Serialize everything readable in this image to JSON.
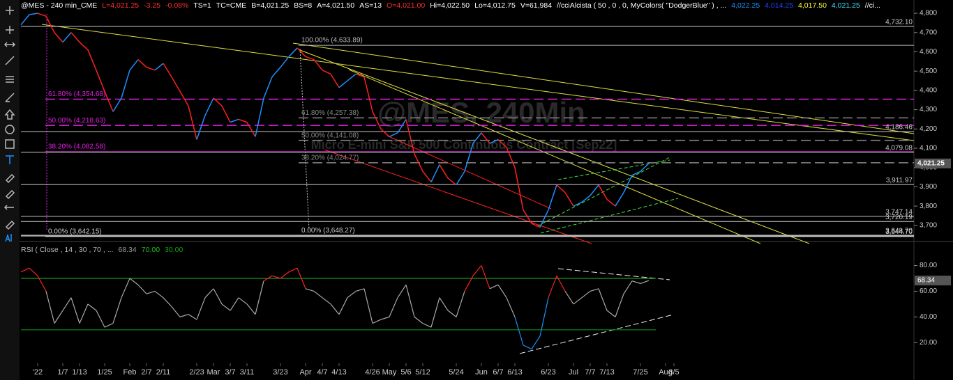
{
  "header": {
    "items": [
      {
        "text": "@MES - 240 min_CME",
        "color": "#ffffff"
      },
      {
        "text": "L=4,021.25",
        "color": "#ff3030"
      },
      {
        "text": "-3.25",
        "color": "#ff3030"
      },
      {
        "text": "-0.08%",
        "color": "#ff3030"
      },
      {
        "text": "TS=1",
        "color": "#ffffff"
      },
      {
        "text": "TC=CME",
        "color": "#ffffff"
      },
      {
        "text": "B=4,021.25",
        "color": "#ffffff"
      },
      {
        "text": "BS=8",
        "color": "#ffffff"
      },
      {
        "text": "A=4,021.50",
        "color": "#ffffff"
      },
      {
        "text": "AS=13",
        "color": "#ffffff"
      },
      {
        "text": "O=4,021.00",
        "color": "#ff3030"
      },
      {
        "text": "Hi=4,022.50",
        "color": "#ffffff"
      },
      {
        "text": "Lo=4,012.75",
        "color": "#ffffff"
      },
      {
        "text": "V=61,984",
        "color": "#ffffff"
      },
      {
        "text": "//cciAlcista ( 50 , 0 , 0, MyColors( \"DodgerBlue\" ) , ...",
        "color": "#ffffff"
      },
      {
        "text": "4,022.25",
        "color": "#1e90ff"
      },
      {
        "text": "4,014.25",
        "color": "#2040ff"
      },
      {
        "text": "4,017.50",
        "color": "#ffff40"
      },
      {
        "text": "4,021.25",
        "color": "#40e0ff"
      },
      {
        "text": "//ci...",
        "color": "#ffffff"
      }
    ]
  },
  "chart_data": [
    {
      "type": "line",
      "title": "@MES, 240Min",
      "subtitle": "Micro E-mini S&P 500 Continuous Contract [Sep22]",
      "categories": [
        null,
        null,
        "'22",
        null,
        null,
        "1/7",
        null,
        "1/13",
        null,
        null,
        "1/25",
        null,
        null,
        "Feb",
        null,
        "2/7",
        null,
        "2/11",
        null,
        null,
        null,
        "2/23",
        null,
        "Mar",
        null,
        "3/7",
        null,
        "3/11",
        null,
        null,
        null,
        "3/23",
        null,
        null,
        "Apr",
        null,
        "4/7",
        null,
        "4/13",
        null,
        null,
        null,
        "4/26",
        null,
        "May",
        null,
        "5/6",
        null,
        "5/12",
        null,
        null,
        null,
        "5/24",
        null,
        null,
        "Jun",
        null,
        "6/7",
        null,
        "6/13",
        null,
        null,
        null,
        "6/23",
        null,
        null,
        "Jul",
        null,
        "7/7",
        null,
        "7/13",
        null,
        null,
        null,
        "7/25",
        null,
        null,
        "Aug",
        "8/5"
      ],
      "series": [
        {
          "name": "@MES - 240 min_CME",
          "up_color": "#1e90ff",
          "down_color": "#ff2020",
          "values": [
            4740,
            4793,
            4800,
            4785,
            4700,
            4650,
            4700,
            4650,
            4610,
            4505,
            4395,
            4290,
            4360,
            4505,
            4560,
            4520,
            4505,
            4540,
            4470,
            4395,
            4320,
            4145,
            4270,
            4360,
            4320,
            4235,
            4250,
            4235,
            4160,
            4360,
            4470,
            4520,
            4575,
            4620,
            4575,
            4560,
            4505,
            4485,
            4415,
            4450,
            4485,
            4470,
            4290,
            4200,
            4160,
            4180,
            4250,
            4070,
            3980,
            3925,
            4015,
            3945,
            3910,
            3980,
            4125,
            4180,
            4125,
            4145,
            4105,
            4000,
            3780,
            3710,
            3690,
            3780,
            3910,
            3870,
            3800,
            3820,
            3855,
            3910,
            3835,
            3800,
            3870,
            3960,
            3980,
            4021.25,
            null,
            null,
            null
          ]
        }
      ],
      "last": {
        "value": 4021.25,
        "label": "4,021.25"
      },
      "ylim": [
        3620,
        4840
      ],
      "yticks": [
        {
          "value": 3700,
          "label": "3,700"
        },
        {
          "value": 3800,
          "label": "3,800"
        },
        {
          "value": 3900,
          "label": "3,900"
        },
        {
          "value": 4000,
          "label": "4,000"
        },
        {
          "value": 4100,
          "label": "4,100"
        },
        {
          "value": 4200,
          "label": "4,200"
        },
        {
          "value": 4300,
          "label": "4,300"
        },
        {
          "value": 4400,
          "label": "4,400"
        },
        {
          "value": 4500,
          "label": "4,500"
        },
        {
          "value": 4600,
          "label": "4,600"
        },
        {
          "value": 4700,
          "label": "4,700"
        },
        {
          "value": 4800,
          "label": "4,800"
        }
      ],
      "fib_1": [
        {
          "value": 4354.68,
          "label": "61.80% (4,354.68)",
          "color": "#e020e0",
          "dashed": true
        },
        {
          "value": 4218.63,
          "label": "50.00% (4,218.63)",
          "color": "#e020e0",
          "dashed": true
        },
        {
          "value": 4082.58,
          "label": "38.20% (4,082.58)",
          "color": "#e020e0",
          "dashed": false
        },
        {
          "value": 3642.15,
          "label": "0.00% (3,642.15)",
          "color": "#cccccc",
          "dashed": false
        }
      ],
      "fib_2": [
        {
          "value": 4633.89,
          "label": "100.00% (4,633.89)",
          "color": "#bbbbbb",
          "dashed": false
        },
        {
          "value": 4257.38,
          "label": "61.80% (4,257.38)",
          "color": "#888888",
          "dashed": true
        },
        {
          "value": 4141.08,
          "label": "50.00% (4,141.08)",
          "color": "#888888",
          "dashed": true
        },
        {
          "value": 4024.77,
          "label": "38.20% (4,024.77)",
          "color": "#888888",
          "dashed": true
        },
        {
          "value": 3648.27,
          "label": "0.00% (3,648.27)",
          "color": "#cccccc",
          "dashed": false
        }
      ],
      "levels": [
        {
          "value": 4732.1,
          "label": "4,732.10",
          "color": "#cccccc",
          "dashed": false
        },
        {
          "value": 4186.46,
          "label": "4,186.46",
          "color": "#cccccc",
          "dashed": false
        },
        {
          "value": 4079.08,
          "label": "4,079.08",
          "color": "#cccccc",
          "dashed": false
        },
        {
          "value": 3911.97,
          "label": "3,911.97",
          "color": "#cccccc",
          "dashed": false
        },
        {
          "value": 3747.14,
          "label": "3,747.14",
          "color": "#cccccc",
          "dashed": false
        },
        {
          "value": 3720.19,
          "label": "3,720.19",
          "color": "#cccccc",
          "dashed": false
        },
        {
          "value": 3648.7,
          "label": "3,648.70",
          "color": "#cccccc",
          "dashed": false
        },
        {
          "value": 3644.7,
          "label": "3,644.70",
          "color": "#cccccc",
          "dashed": false
        }
      ]
    },
    {
      "type": "line",
      "title": "RSI ( Close , 14 , 30 , 70 , ...",
      "color": "#aaaaaa",
      "over_color": "#ff2020",
      "under_color": "#1e90ff",
      "values": [
        75,
        78,
        72,
        60,
        35,
        45,
        55,
        35,
        50,
        45,
        32,
        35,
        55,
        70,
        65,
        58,
        60,
        55,
        48,
        40,
        42,
        38,
        55,
        62,
        50,
        45,
        55,
        50,
        42,
        68,
        72,
        70,
        75,
        78,
        62,
        60,
        55,
        50,
        42,
        55,
        60,
        62,
        35,
        38,
        40,
        55,
        65,
        40,
        35,
        32,
        55,
        45,
        40,
        60,
        72,
        80,
        62,
        65,
        55,
        40,
        18,
        15,
        25,
        55,
        72,
        60,
        50,
        55,
        60,
        62,
        45,
        40,
        58,
        68,
        66,
        68.34,
        null,
        null,
        null
      ],
      "levels": [
        {
          "value": 70,
          "label": "70.00",
          "color": "#20c020"
        },
        {
          "value": 30,
          "label": "30.00",
          "color": "#10a010"
        }
      ],
      "ylim": [
        5,
        96
      ],
      "yticks": [
        {
          "value": 20,
          "label": "20.00"
        },
        {
          "value": 40,
          "label": "40.00"
        },
        {
          "value": 60,
          "label": "60.00"
        },
        {
          "value": 80,
          "label": "80.00"
        }
      ]
    }
  ]
}
